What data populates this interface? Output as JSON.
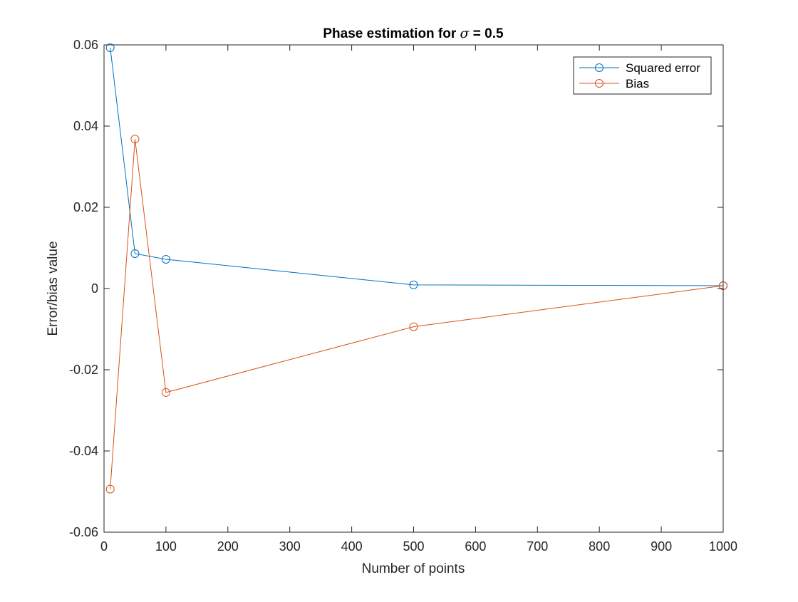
{
  "chart_data": {
    "type": "line",
    "title": {
      "prefix": "Phase estimation for ",
      "symbol": "σ",
      "suffix": " = 0.5"
    },
    "xlabel": "Number of points",
    "ylabel": "Error/bias value",
    "xlim": [
      0,
      1000
    ],
    "ylim": [
      -0.06,
      0.06
    ],
    "xticks": [
      0,
      100,
      200,
      300,
      400,
      500,
      600,
      700,
      800,
      900,
      1000
    ],
    "xtick_labels": [
      "0",
      "100",
      "200",
      "300",
      "400",
      "500",
      "600",
      "700",
      "800",
      "900",
      "1000"
    ],
    "yticks": [
      -0.06,
      -0.04,
      -0.02,
      0,
      0.02,
      0.04,
      0.06
    ],
    "ytick_labels": [
      "-0.06",
      "-0.04",
      "-0.02",
      "0",
      "0.02",
      "0.04",
      "0.06"
    ],
    "grid": false,
    "box": true,
    "legend_position": "top-right",
    "marker": "circle-open",
    "x": [
      10,
      50,
      100,
      500,
      1000
    ],
    "series": [
      {
        "name": "Squared error",
        "color": "#0072BD",
        "values": [
          0.0593,
          0.0086,
          0.0072,
          0.0009,
          0.0007
        ]
      },
      {
        "name": "Bias",
        "color": "#D95319",
        "values": [
          -0.0494,
          0.0368,
          -0.0256,
          -0.0094,
          0.0007
        ]
      }
    ]
  }
}
